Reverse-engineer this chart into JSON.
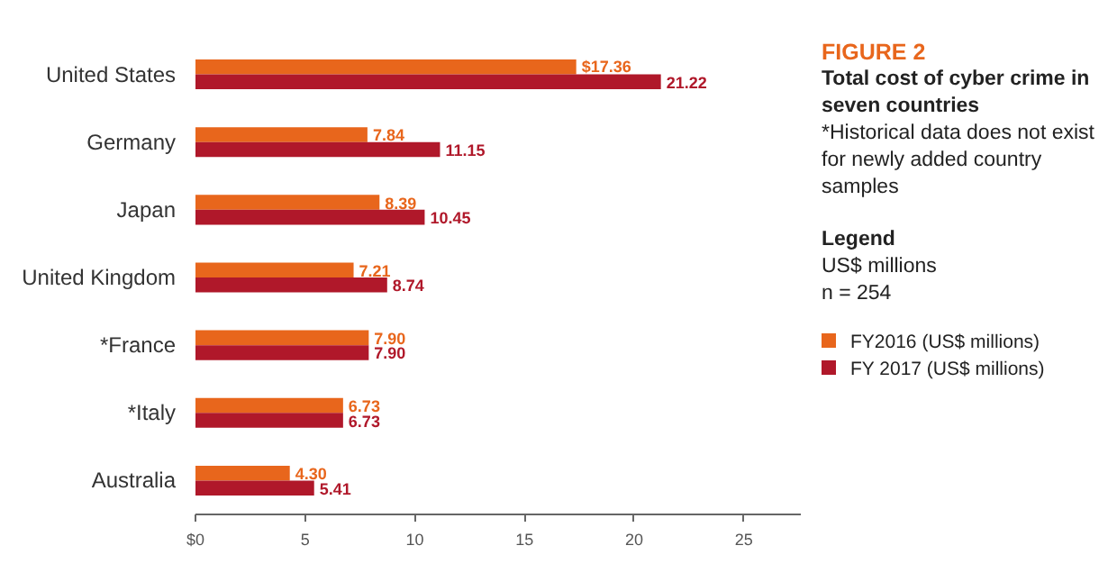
{
  "chart_data": {
    "type": "bar",
    "orientation": "horizontal",
    "title": "FIGURE 2",
    "subtitle": "Total cost of cyber crime in seven countries",
    "annotations": [
      "*Historical data does not exist for newly added country samples",
      "US$ millions",
      "n = 254"
    ],
    "legend_title": "Legend",
    "legend": "right",
    "categories": [
      "United States",
      "Germany",
      "Japan",
      "United Kingdom",
      "*France",
      "*Italy",
      "Australia"
    ],
    "series": [
      {
        "name": "FY2016 (US$ millions)",
        "color": "#e8661c",
        "values": [
          17.36,
          7.84,
          8.39,
          7.21,
          7.9,
          6.73,
          4.3
        ],
        "value_labels": [
          "$17.36",
          "7.84",
          "8.39",
          "7.21",
          "7.90",
          "6.73",
          "4.30"
        ]
      },
      {
        "name": "FY 2017 (US$ millions)",
        "color": "#b0182a",
        "values": [
          21.22,
          11.15,
          10.45,
          8.74,
          7.9,
          6.73,
          5.41
        ],
        "value_labels": [
          "21.22",
          "11.15",
          "10.45",
          "8.74",
          "7.90",
          "6.73",
          "5.41"
        ]
      }
    ],
    "xlim": [
      0,
      27.6
    ],
    "xticks": [
      {
        "value": 0,
        "label": "$0"
      },
      5,
      10,
      15,
      20,
      25
    ],
    "grid": false
  }
}
